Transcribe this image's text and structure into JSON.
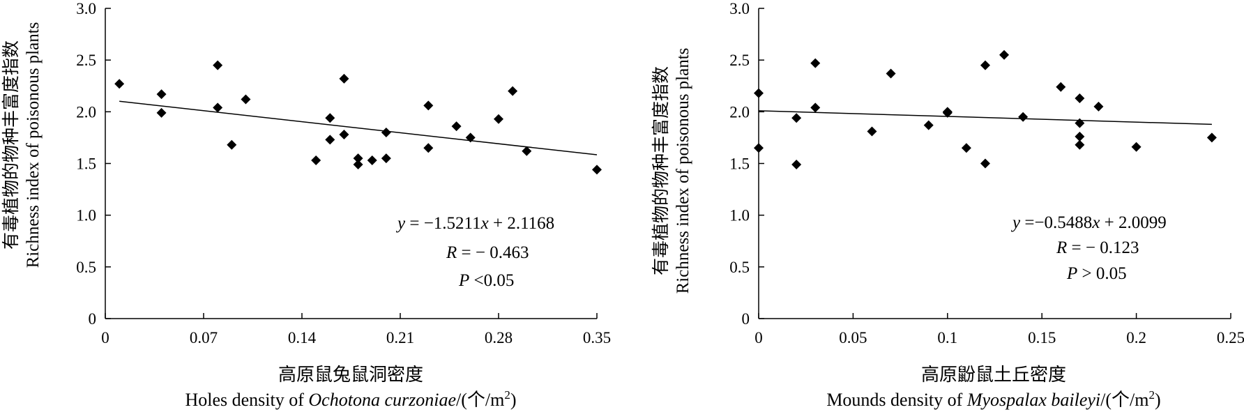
{
  "chart_data": [
    {
      "type": "scatter",
      "ylabel_zh": "有毒植物的物种丰富度指数",
      "ylabel_en": "Richness index of poisonous plants",
      "xlabel_zh": "高原鼠兔鼠洞密度",
      "xlabel_en_prefix": "Holes density of ",
      "xlabel_en_species": "Ochotona curzoniae",
      "xlabel_en_unit": "/(个/m",
      "xlabel_en_sup": "2",
      "xlabel_en_close": ")",
      "xlim": [
        0,
        0.35
      ],
      "ylim": [
        0,
        3.0
      ],
      "xticks": [
        0,
        0.07,
        0.14,
        0.21,
        0.28,
        0.35
      ],
      "xtick_labels": [
        "0",
        "0.07",
        "0.14",
        "0.21",
        "0.28",
        "0.35"
      ],
      "yticks": [
        0,
        0.5,
        1.0,
        1.5,
        2.0,
        2.5,
        3.0
      ],
      "ytick_labels": [
        "0",
        "0.5",
        "1.0",
        "1.5",
        "2.0",
        "2.5",
        "3.0"
      ],
      "points": [
        [
          0.01,
          2.27
        ],
        [
          0.04,
          2.17
        ],
        [
          0.04,
          1.99
        ],
        [
          0.08,
          2.45
        ],
        [
          0.08,
          2.04
        ],
        [
          0.09,
          1.68
        ],
        [
          0.1,
          2.12
        ],
        [
          0.15,
          1.53
        ],
        [
          0.16,
          1.94
        ],
        [
          0.16,
          1.73
        ],
        [
          0.17,
          2.32
        ],
        [
          0.17,
          1.78
        ],
        [
          0.18,
          1.55
        ],
        [
          0.18,
          1.49
        ],
        [
          0.19,
          1.53
        ],
        [
          0.2,
          1.8
        ],
        [
          0.2,
          1.55
        ],
        [
          0.23,
          2.06
        ],
        [
          0.23,
          1.65
        ],
        [
          0.25,
          1.86
        ],
        [
          0.26,
          1.75
        ],
        [
          0.28,
          1.93
        ],
        [
          0.29,
          2.2
        ],
        [
          0.3,
          1.62
        ],
        [
          0.35,
          1.44
        ]
      ],
      "fit": {
        "slope": -1.5211,
        "intercept": 2.1168,
        "x_range": [
          0.01,
          0.35
        ]
      },
      "eq_y": "y",
      "eq_rhs": " = −1.5211",
      "eq_x": "x",
      "eq_tail": " + 2.1168",
      "r_sym": "R",
      "r_text": " = − 0.463",
      "p_sym": "P",
      "p_text": " <0.05"
    },
    {
      "type": "scatter",
      "ylabel_zh": "有毒植物的物种丰富度指数",
      "ylabel_en": "Richness index of poisonous plants",
      "xlabel_zh": "高原鼢鼠土丘密度",
      "xlabel_en_prefix": "Mounds density of ",
      "xlabel_en_species": "Myospalax baileyi",
      "xlabel_en_unit": "/(个/m",
      "xlabel_en_sup": "2",
      "xlabel_en_close": ")",
      "xlim": [
        0,
        0.25
      ],
      "ylim": [
        0,
        3.0
      ],
      "xticks": [
        0,
        0.05,
        0.1,
        0.15,
        0.2,
        0.25
      ],
      "xtick_labels": [
        "0",
        "0.05",
        "0.1",
        "0.15",
        "0.2",
        "0.25"
      ],
      "yticks": [
        0,
        0.5,
        1.0,
        1.5,
        2.0,
        2.5,
        3.0
      ],
      "ytick_labels": [
        "0",
        "0.5",
        "1.0",
        "1.5",
        "2.0",
        "2.5",
        "3.0"
      ],
      "points": [
        [
          0,
          2.18
        ],
        [
          0,
          1.65
        ],
        [
          0.02,
          1.94
        ],
        [
          0.02,
          1.49
        ],
        [
          0.03,
          2.47
        ],
        [
          0.03,
          2.04
        ],
        [
          0.06,
          1.81
        ],
        [
          0.07,
          2.37
        ],
        [
          0.09,
          1.87
        ],
        [
          0.1,
          2.0
        ],
        [
          0.1,
          1.99
        ],
        [
          0.11,
          1.65
        ],
        [
          0.12,
          2.45
        ],
        [
          0.12,
          1.5
        ],
        [
          0.13,
          2.55
        ],
        [
          0.14,
          1.95
        ],
        [
          0.16,
          2.24
        ],
        [
          0.17,
          2.13
        ],
        [
          0.17,
          1.89
        ],
        [
          0.17,
          1.76
        ],
        [
          0.17,
          1.68
        ],
        [
          0.18,
          2.05
        ],
        [
          0.2,
          1.66
        ],
        [
          0.24,
          1.75
        ]
      ],
      "fit": {
        "slope": -0.5488,
        "intercept": 2.0099,
        "x_range": [
          0,
          0.24
        ]
      },
      "eq_y": "y",
      "eq_rhs": " =−0.5488",
      "eq_x": "x",
      "eq_tail": " + 2.0099",
      "r_sym": "R",
      "r_text": " = − 0.123",
      "p_sym": "P",
      "p_text": " > 0.05"
    }
  ]
}
